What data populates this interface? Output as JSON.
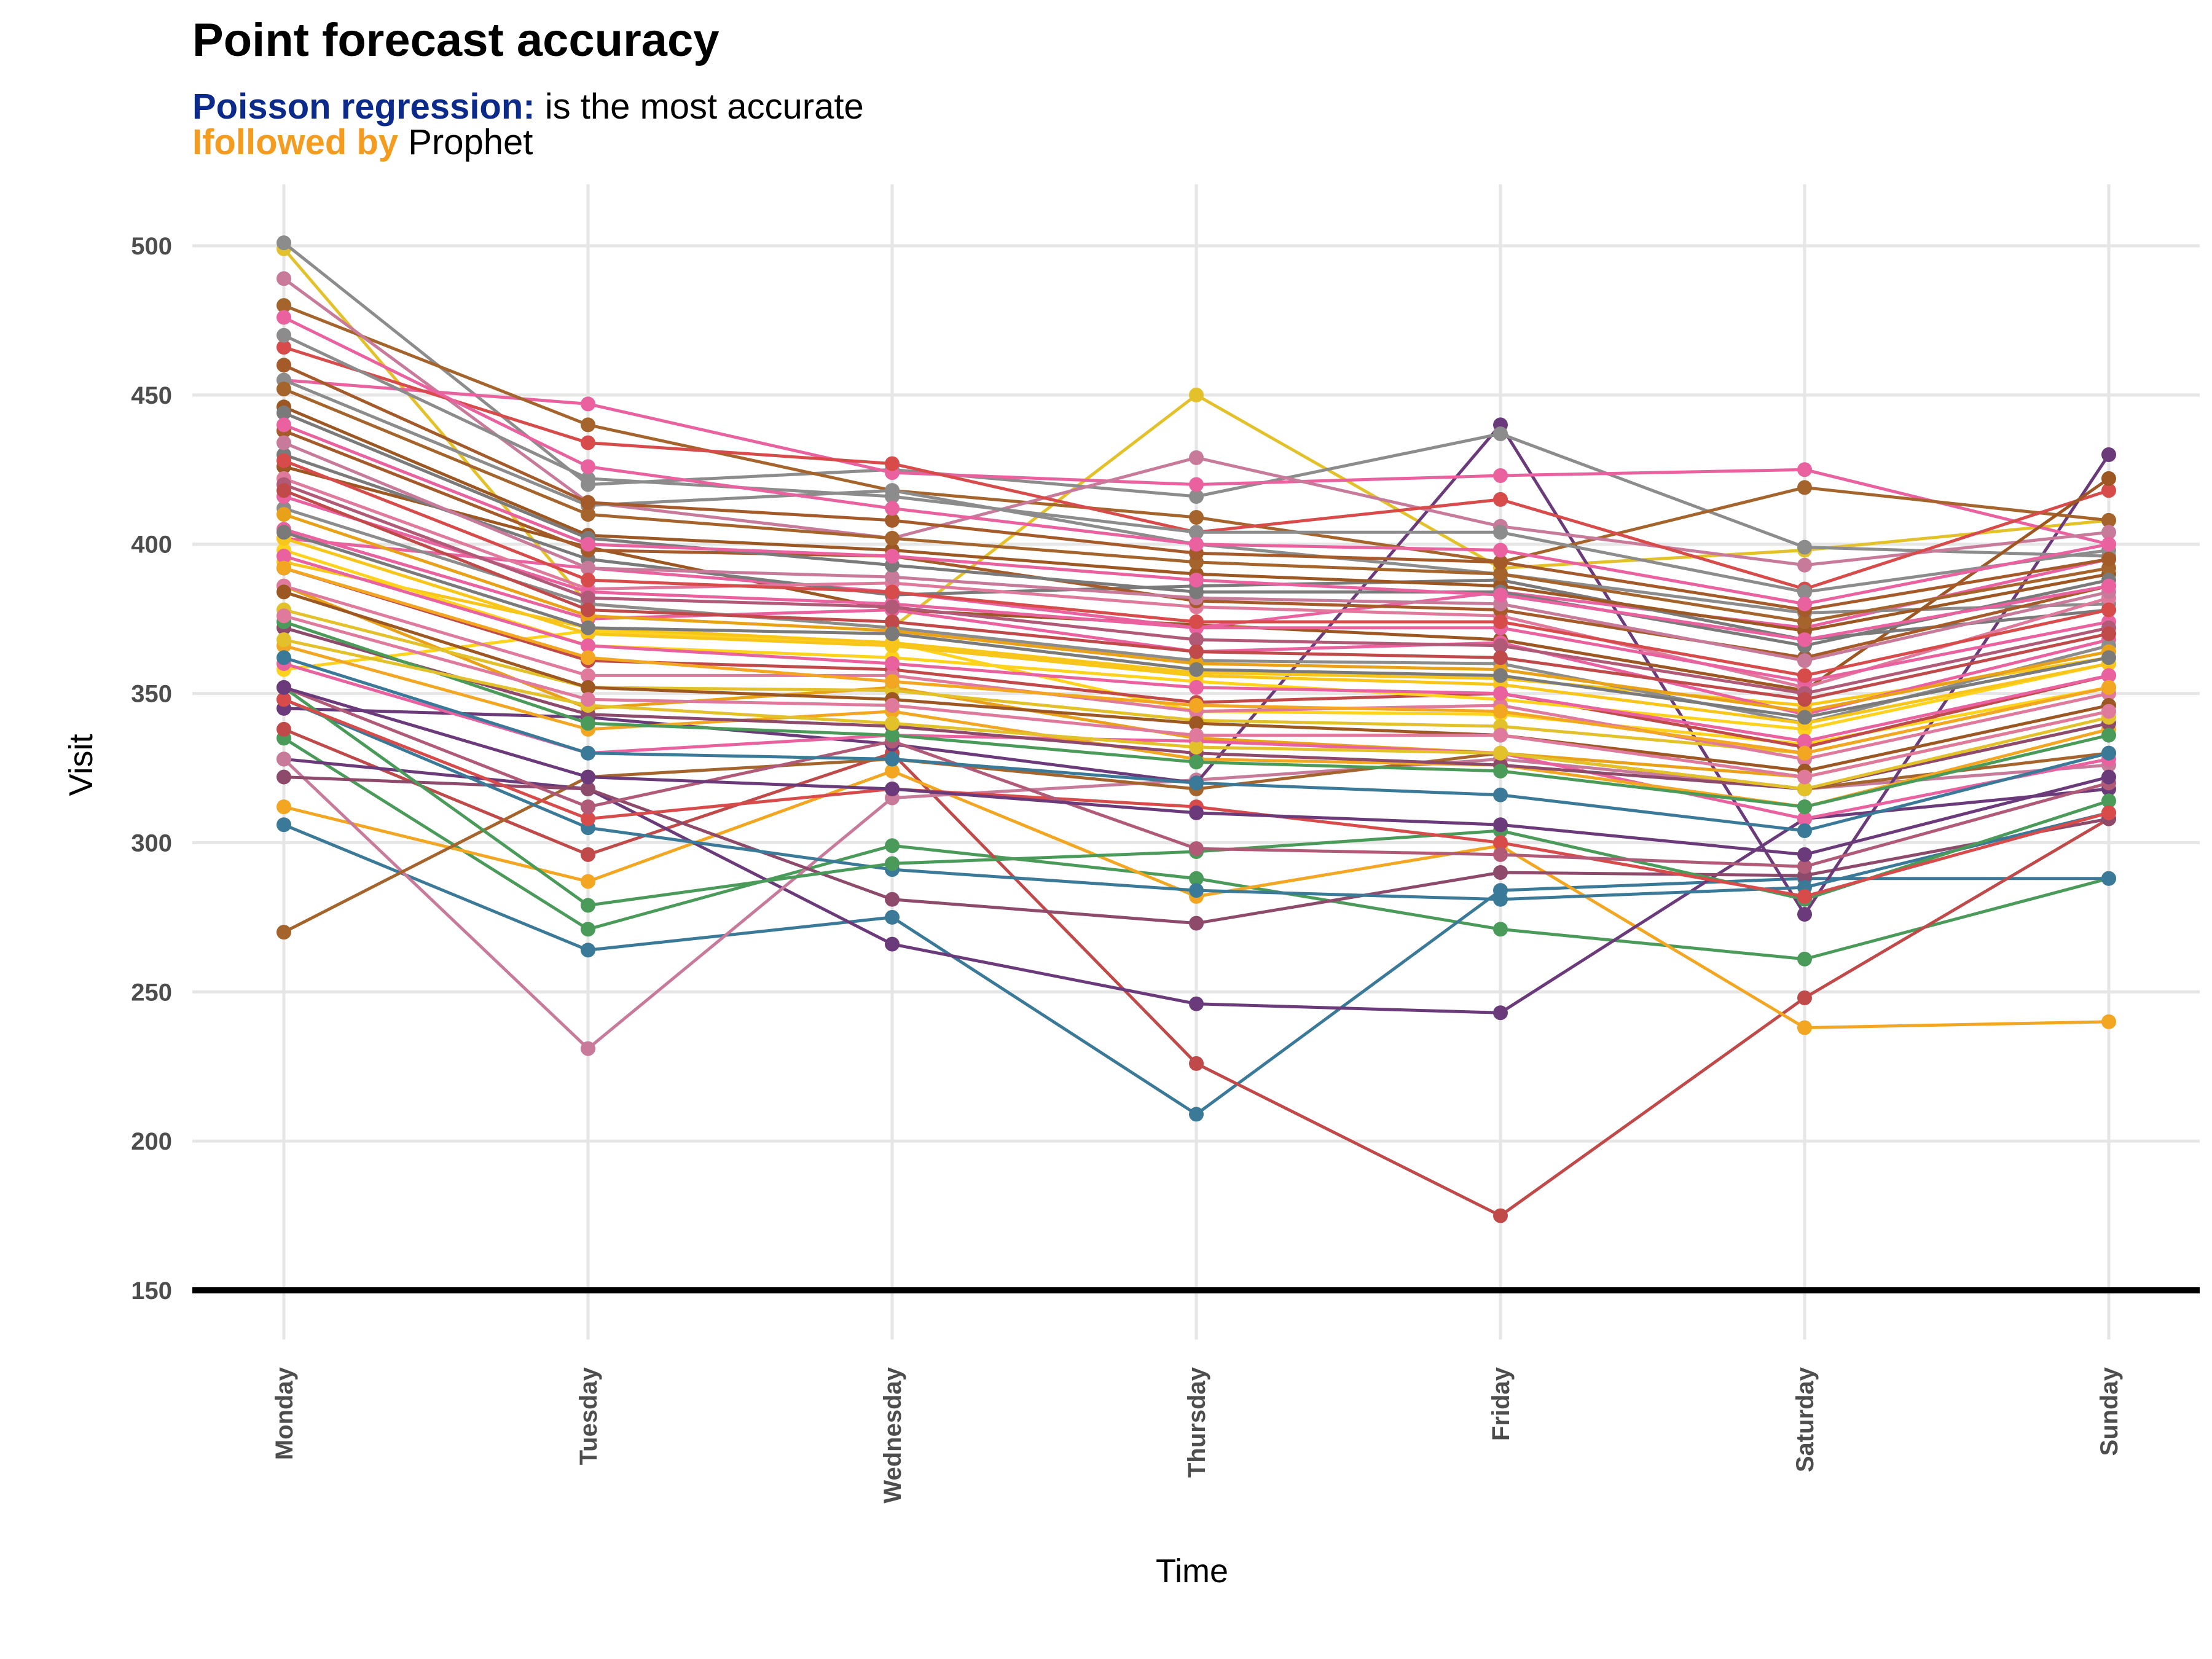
{
  "header": {
    "title": "Point forecast accuracy",
    "subtitle1_highlight": "Poisson regression:",
    "subtitle1_rest": " is the most accurate",
    "subtitle2_highlight": "Ifollowed by",
    "subtitle2_rest": " Prophet"
  },
  "colors": {
    "highlight1": "#0b2a8a",
    "highlight2": "#f39c1f",
    "palette": [
      "#e9619f",
      "#a5642b",
      "#9c5723",
      "#e3c12a",
      "#8c8c8c",
      "#f8c61a",
      "#d74b4b",
      "#e07a9c",
      "#ffd21e",
      "#3a7a98",
      "#6b3a7a",
      "#4a9a5a",
      "#c04a4a",
      "#f2a622",
      "#8d4a6a",
      "#c87a9a",
      "#a55a2a",
      "#e9a11a",
      "#b05a78",
      "#7a7a7a"
    ]
  },
  "chart_data": {
    "type": "line",
    "title": "Point forecast accuracy",
    "xlabel": "Time",
    "ylabel": "Visit",
    "categories": [
      "Monday",
      "Tuesday",
      "Wednesday",
      "Thursday",
      "Friday",
      "Saturday",
      "Sunday"
    ],
    "ylim": [
      135,
      520
    ],
    "yticks": [
      150,
      200,
      250,
      300,
      350,
      400,
      450,
      500
    ],
    "grid": true,
    "legend": "none",
    "series_count_note": "",
    "series": [
      {
        "color": "#4a9a5a",
        "values": [
          335,
          271,
          299,
          288,
          271,
          261,
          288
        ]
      },
      {
        "color": "#3a7a98",
        "values": [
          306,
          264,
          275,
          209,
          284,
          288,
          288
        ]
      },
      {
        "color": "#c04a4a",
        "values": [
          338,
          296,
          330,
          226,
          175,
          248,
          308
        ]
      },
      {
        "color": "#f2a622",
        "values": [
          312,
          287,
          324,
          282,
          299,
          238,
          240
        ]
      },
      {
        "color": "#6b3a7a",
        "values": [
          328,
          318,
          266,
          246,
          243,
          308,
          318
        ]
      },
      {
        "color": "#c87a9a",
        "values": [
          328,
          231,
          315,
          321,
          328,
          318,
          326
        ]
      },
      {
        "color": "#a5642b",
        "values": [
          270,
          322,
          328,
          318,
          330,
          318,
          330
        ]
      },
      {
        "color": "#8d4a6a",
        "values": [
          322,
          318,
          281,
          273,
          290,
          289,
          308
        ]
      },
      {
        "color": "#e3c12a",
        "values": [
          499,
          380,
          372,
          450,
          392,
          398,
          408
        ]
      },
      {
        "color": "#6b3a7a",
        "values": [
          345,
          342,
          333,
          320,
          440,
          276,
          430
        ]
      },
      {
        "color": "#8c8c8c",
        "values": [
          501,
          420,
          425,
          416,
          437,
          399,
          396
        ]
      },
      {
        "color": "#e9619f",
        "values": [
          455,
          447,
          424,
          420,
          423,
          425,
          400
        ]
      },
      {
        "color": "#a5642b",
        "values": [
          480,
          440,
          418,
          409,
          394,
          419,
          408
        ]
      },
      {
        "color": "#c87a9a",
        "values": [
          489,
          414,
          402,
          429,
          406,
          393,
          404
        ]
      },
      {
        "color": "#d74b4b",
        "values": [
          466,
          434,
          427,
          404,
          415,
          385,
          418
        ]
      },
      {
        "color": "#9c5723",
        "values": [
          426,
          399,
          378,
          373,
          368,
          351,
          422
        ]
      },
      {
        "color": "#e9619f",
        "values": [
          402,
          392,
          384,
          372,
          384,
          372,
          395
        ]
      },
      {
        "color": "#8c8c8c",
        "values": [
          455,
          413,
          418,
          400,
          390,
          377,
          380
        ]
      },
      {
        "color": "#ffd21e",
        "values": [
          358,
          371,
          367,
          344,
          343,
          333,
          352
        ]
      },
      {
        "color": "#e9a11a",
        "values": [
          386,
          345,
          352,
          335,
          330,
          322,
          344
        ]
      },
      {
        "color": "#3a7a98",
        "values": [
          348,
          305,
          291,
          284,
          281,
          285,
          310
        ]
      },
      {
        "color": "#4a9a5a",
        "values": [
          352,
          279,
          293,
          297,
          304,
          281,
          314
        ]
      },
      {
        "color": "#e9619f",
        "values": [
          360,
          330,
          336,
          334,
          330,
          308,
          328
        ]
      },
      {
        "color": "#d74b4b",
        "values": [
          348,
          308,
          318,
          312,
          300,
          282,
          310
        ]
      },
      {
        "color": "#b05a78",
        "values": [
          352,
          312,
          334,
          298,
          296,
          292,
          320
        ]
      },
      {
        "color": "#7a7a7a",
        "values": [
          430,
          395,
          383,
          386,
          388,
          368,
          378
        ]
      },
      {
        "color": "#f8c61a",
        "values": [
          394,
          372,
          367,
          357,
          355,
          346,
          362
        ]
      },
      {
        "color": "#e07a9c",
        "values": [
          422,
          385,
          387,
          379,
          376,
          352,
          382
        ]
      },
      {
        "color": "#a55a2a",
        "values": [
          438,
          398,
          396,
          381,
          378,
          362,
          386
        ]
      },
      {
        "color": "#e9619f",
        "values": [
          405,
          375,
          378,
          364,
          367,
          343,
          368
        ]
      },
      {
        "color": "#8c8c8c",
        "values": [
          412,
          380,
          372,
          361,
          360,
          340,
          366
        ]
      },
      {
        "color": "#e3c12a",
        "values": [
          378,
          352,
          351,
          341,
          339,
          330,
          352
        ]
      },
      {
        "color": "#c04a4a",
        "values": [
          392,
          361,
          358,
          347,
          350,
          332,
          356
        ]
      },
      {
        "color": "#9c5723",
        "values": [
          446,
          403,
          398,
          390,
          386,
          371,
          390
        ]
      },
      {
        "color": "#e9619f",
        "values": [
          416,
          384,
          380,
          372,
          372,
          354,
          374
        ]
      },
      {
        "color": "#f2a622",
        "values": [
          366,
          338,
          344,
          328,
          326,
          312,
          338
        ]
      },
      {
        "color": "#c87a9a",
        "values": [
          434,
          392,
          389,
          382,
          380,
          361,
          384
        ]
      },
      {
        "color": "#ffd21e",
        "values": [
          398,
          366,
          362,
          354,
          348,
          338,
          360
        ]
      },
      {
        "color": "#a5642b",
        "values": [
          452,
          410,
          402,
          394,
          390,
          374,
          392
        ]
      },
      {
        "color": "#e07a9c",
        "values": [
          386,
          356,
          356,
          344,
          346,
          328,
          350
        ]
      },
      {
        "color": "#8d4a6a",
        "values": [
          372,
          343,
          339,
          330,
          326,
          318,
          340
        ]
      },
      {
        "color": "#d74b4b",
        "values": [
          428,
          388,
          384,
          374,
          374,
          356,
          378
        ]
      },
      {
        "color": "#7a7a7a",
        "values": [
          444,
          402,
          393,
          384,
          384,
          366,
          388
        ]
      },
      {
        "color": "#e9a11a",
        "values": [
          410,
          376,
          371,
          360,
          358,
          344,
          364
        ]
      },
      {
        "color": "#e9619f",
        "values": [
          440,
          400,
          396,
          388,
          383,
          368,
          386
        ]
      },
      {
        "color": "#3a7a98",
        "values": [
          362,
          330,
          328,
          320,
          316,
          304,
          330
        ]
      },
      {
        "color": "#4a9a5a",
        "values": [
          374,
          340,
          336,
          327,
          324,
          312,
          336
        ]
      },
      {
        "color": "#b05a78",
        "values": [
          420,
          382,
          379,
          368,
          366,
          350,
          372
        ]
      },
      {
        "color": "#f8c61a",
        "values": [
          402,
          370,
          366,
          356,
          353,
          340,
          360
        ]
      },
      {
        "color": "#9c5723",
        "values": [
          384,
          352,
          348,
          340,
          336,
          324,
          346
        ]
      },
      {
        "color": "#8c8c8c",
        "values": [
          470,
          422,
          416,
          404,
          404,
          384,
          398
        ]
      },
      {
        "color": "#e9619f",
        "values": [
          396,
          366,
          360,
          352,
          350,
          334,
          356
        ]
      },
      {
        "color": "#c04a4a",
        "values": [
          418,
          378,
          374,
          364,
          362,
          348,
          370
        ]
      },
      {
        "color": "#e3c12a",
        "values": [
          368,
          346,
          340,
          332,
          330,
          318,
          342
        ]
      },
      {
        "color": "#a55a2a",
        "values": [
          460,
          414,
          408,
          397,
          394,
          378,
          395
        ]
      },
      {
        "color": "#e07a9c",
        "values": [
          376,
          348,
          346,
          336,
          336,
          322,
          344
        ]
      },
      {
        "color": "#6b3a7a",
        "values": [
          352,
          322,
          318,
          310,
          306,
          296,
          322
        ]
      },
      {
        "color": "#f2a622",
        "values": [
          392,
          362,
          354,
          346,
          344,
          330,
          352
        ]
      },
      {
        "color": "#e9619f",
        "values": [
          476,
          426,
          412,
          400,
          398,
          380,
          400
        ]
      },
      {
        "color": "#7a7a7a",
        "values": [
          404,
          372,
          370,
          358,
          356,
          342,
          362
        ]
      }
    ]
  }
}
